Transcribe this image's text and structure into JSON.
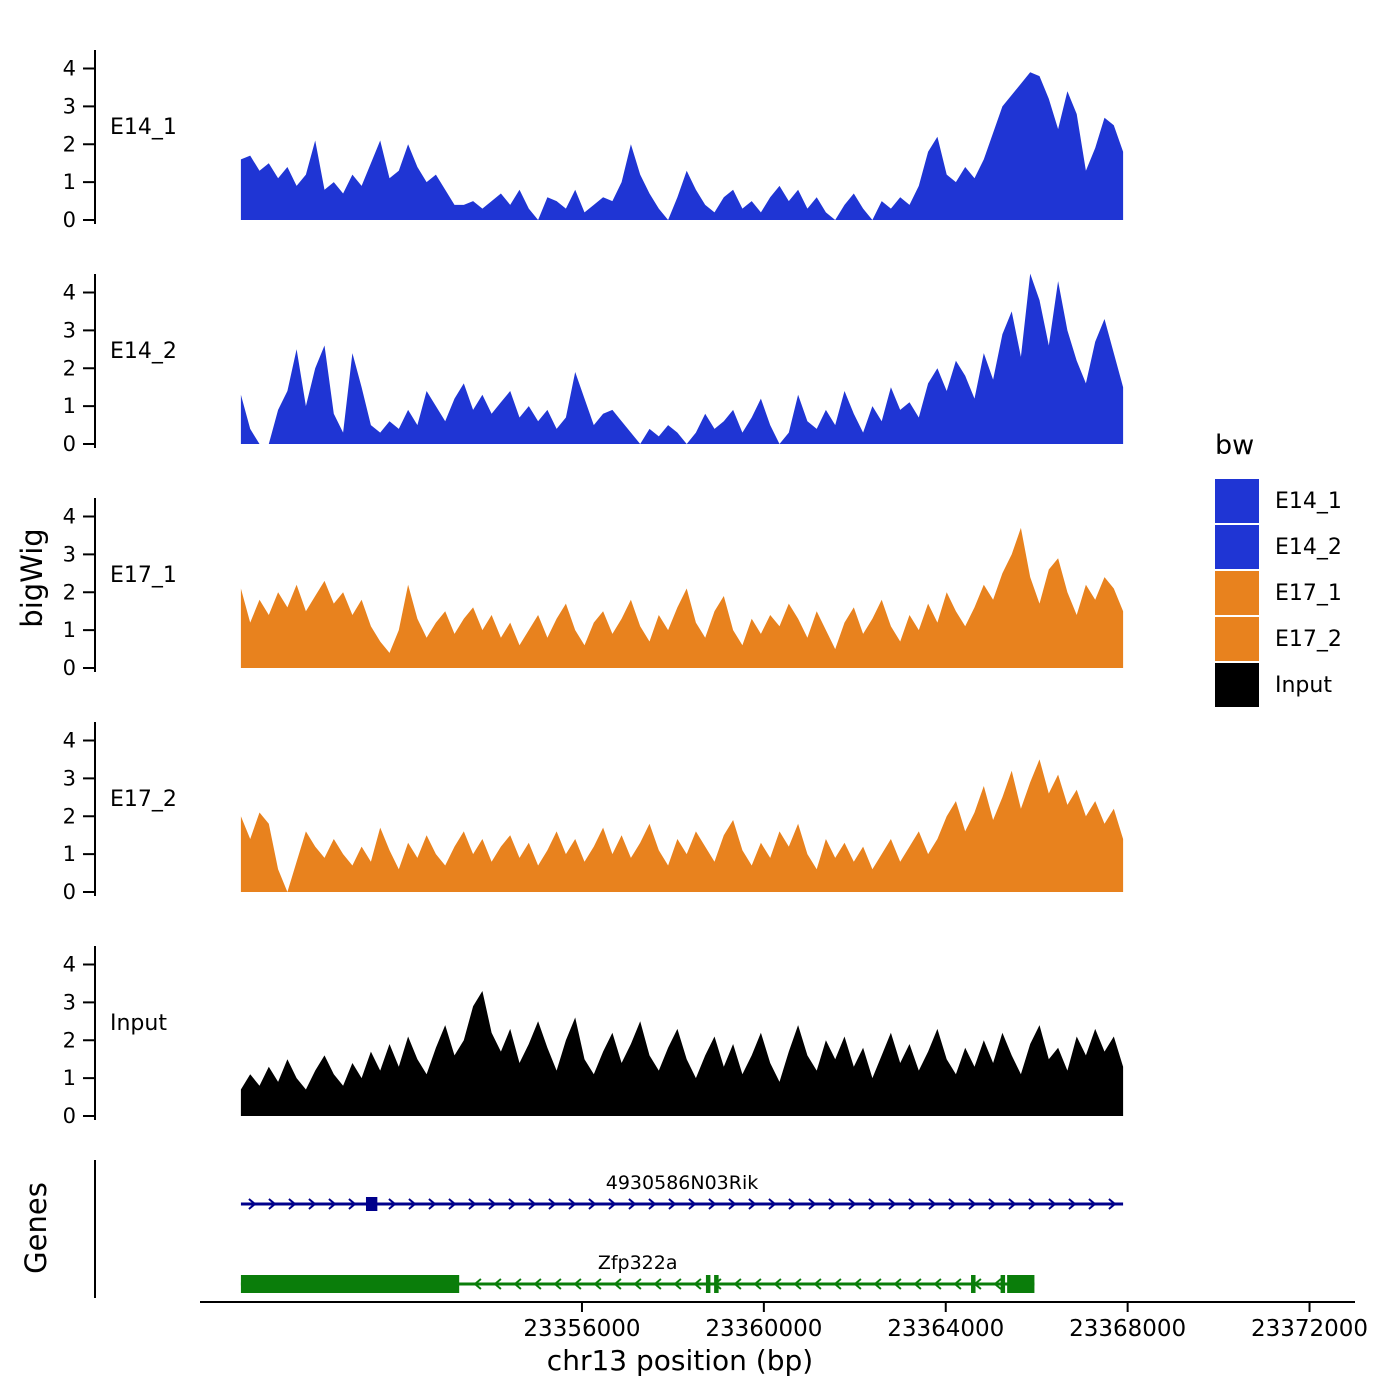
{
  "figure": {
    "y_axis_label": "bigWig",
    "genes_axis_label": "Genes",
    "x_axis_label": "chr13 position (bp)",
    "legend": {
      "title": "bw",
      "entries": [
        {
          "label": "E14_1",
          "color": "#1f35d4"
        },
        {
          "label": "E14_2",
          "color": "#1f35d4"
        },
        {
          "label": "E17_1",
          "color": "#e8821e"
        },
        {
          "label": "E17_2",
          "color": "#e8821e"
        },
        {
          "label": "Input",
          "color": "#000000"
        }
      ]
    }
  },
  "chart_data": {
    "type": "area",
    "title": "",
    "xlabel": "chr13 position (bp)",
    "ylabel": "bigWig",
    "x_domain": [
      23347600,
      23373000
    ],
    "x_ticks": [
      23356000,
      23360000,
      23364000,
      23368000,
      23372000
    ],
    "x_tick_labels": [
      "23356000",
      "23360000",
      "23364000",
      "23368000",
      "23372000"
    ],
    "y_ticks": [
      0,
      1,
      2,
      3,
      4
    ],
    "ylim": [
      0,
      4.7
    ],
    "x_start": 23348500,
    "x_end": 23367900,
    "tracks": [
      {
        "name": "E14_1",
        "color": "#1f35d4",
        "values": [
          1.6,
          1.7,
          1.3,
          1.5,
          1.1,
          1.4,
          0.9,
          1.2,
          2.1,
          0.8,
          1.0,
          0.7,
          1.2,
          0.9,
          1.5,
          2.1,
          1.1,
          1.3,
          2.0,
          1.4,
          1.0,
          1.2,
          0.8,
          0.4,
          0.4,
          0.5,
          0.3,
          0.5,
          0.7,
          0.4,
          0.8,
          0.3,
          0.0,
          0.6,
          0.5,
          0.3,
          0.8,
          0.2,
          0.4,
          0.6,
          0.5,
          1.0,
          2.0,
          1.2,
          0.7,
          0.3,
          0.0,
          0.6,
          1.3,
          0.8,
          0.4,
          0.2,
          0.6,
          0.8,
          0.3,
          0.5,
          0.2,
          0.6,
          0.9,
          0.5,
          0.8,
          0.3,
          0.6,
          0.2,
          0.0,
          0.4,
          0.7,
          0.3,
          0.0,
          0.5,
          0.3,
          0.6,
          0.4,
          0.9,
          1.8,
          2.2,
          1.2,
          1.0,
          1.4,
          1.1,
          1.6,
          2.3,
          3.0,
          3.3,
          3.6,
          3.9,
          3.8,
          3.2,
          2.4,
          3.4,
          2.8,
          1.3,
          1.9,
          2.7,
          2.5,
          1.8
        ]
      },
      {
        "name": "E14_2",
        "color": "#1f35d4",
        "values": [
          1.3,
          0.4,
          0.0,
          0.0,
          0.9,
          1.4,
          2.5,
          1.0,
          2.0,
          2.6,
          0.8,
          0.3,
          2.4,
          1.5,
          0.5,
          0.3,
          0.6,
          0.4,
          0.9,
          0.5,
          1.4,
          1.0,
          0.6,
          1.2,
          1.6,
          0.9,
          1.3,
          0.8,
          1.1,
          1.4,
          0.7,
          1.0,
          0.6,
          0.9,
          0.4,
          0.7,
          1.9,
          1.2,
          0.5,
          0.8,
          0.9,
          0.6,
          0.3,
          0.0,
          0.4,
          0.2,
          0.5,
          0.3,
          0.0,
          0.3,
          0.8,
          0.4,
          0.6,
          0.9,
          0.3,
          0.7,
          1.2,
          0.5,
          0.0,
          0.3,
          1.3,
          0.6,
          0.4,
          0.9,
          0.5,
          1.4,
          0.8,
          0.3,
          1.0,
          0.6,
          1.5,
          0.9,
          1.1,
          0.7,
          1.6,
          2.0,
          1.4,
          2.2,
          1.8,
          1.2,
          2.4,
          1.7,
          2.9,
          3.5,
          2.3,
          4.5,
          3.8,
          2.6,
          4.3,
          3.0,
          2.2,
          1.6,
          2.7,
          3.3,
          2.4,
          1.5
        ]
      },
      {
        "name": "E17_1",
        "color": "#e8821e",
        "values": [
          2.1,
          1.2,
          1.8,
          1.4,
          2.0,
          1.6,
          2.2,
          1.5,
          1.9,
          2.3,
          1.7,
          2.0,
          1.4,
          1.8,
          1.1,
          0.7,
          0.4,
          1.0,
          2.2,
          1.3,
          0.8,
          1.2,
          1.5,
          0.9,
          1.3,
          1.6,
          1.0,
          1.4,
          0.8,
          1.2,
          0.6,
          1.0,
          1.4,
          0.8,
          1.3,
          1.7,
          1.0,
          0.6,
          1.2,
          1.5,
          0.9,
          1.3,
          1.8,
          1.1,
          0.7,
          1.4,
          1.0,
          1.6,
          2.1,
          1.2,
          0.8,
          1.5,
          1.9,
          1.0,
          0.6,
          1.3,
          0.9,
          1.4,
          1.1,
          1.7,
          1.3,
          0.8,
          1.5,
          1.0,
          0.5,
          1.2,
          1.6,
          0.9,
          1.3,
          1.8,
          1.1,
          0.7,
          1.4,
          1.0,
          1.7,
          1.2,
          2.0,
          1.5,
          1.1,
          1.6,
          2.2,
          1.8,
          2.5,
          3.0,
          3.7,
          2.4,
          1.7,
          2.6,
          2.9,
          2.0,
          1.4,
          2.2,
          1.8,
          2.4,
          2.1,
          1.5
        ]
      },
      {
        "name": "E17_2",
        "color": "#e8821e",
        "values": [
          2.0,
          1.4,
          2.1,
          1.8,
          0.6,
          0.0,
          0.8,
          1.6,
          1.2,
          0.9,
          1.4,
          1.0,
          0.7,
          1.2,
          0.8,
          1.7,
          1.1,
          0.6,
          1.3,
          0.9,
          1.5,
          1.0,
          0.7,
          1.2,
          1.6,
          1.0,
          1.4,
          0.8,
          1.2,
          1.5,
          0.9,
          1.3,
          0.7,
          1.1,
          1.6,
          1.0,
          1.4,
          0.8,
          1.2,
          1.7,
          1.0,
          1.5,
          0.9,
          1.3,
          1.8,
          1.1,
          0.7,
          1.4,
          1.0,
          1.6,
          1.2,
          0.8,
          1.5,
          1.9,
          1.1,
          0.7,
          1.3,
          0.9,
          1.6,
          1.2,
          1.8,
          1.0,
          0.6,
          1.4,
          0.9,
          1.3,
          0.8,
          1.2,
          0.6,
          1.0,
          1.4,
          0.8,
          1.2,
          1.6,
          1.0,
          1.4,
          2.0,
          2.4,
          1.6,
          2.1,
          2.8,
          1.9,
          2.5,
          3.2,
          2.2,
          2.9,
          3.5,
          2.6,
          3.1,
          2.3,
          2.7,
          2.0,
          2.4,
          1.8,
          2.2,
          1.4
        ]
      },
      {
        "name": "Input",
        "color": "#000000",
        "values": [
          0.7,
          1.1,
          0.8,
          1.3,
          0.9,
          1.5,
          1.0,
          0.7,
          1.2,
          1.6,
          1.1,
          0.8,
          1.4,
          1.0,
          1.7,
          1.2,
          1.9,
          1.3,
          2.1,
          1.5,
          1.1,
          1.8,
          2.4,
          1.6,
          2.0,
          2.9,
          3.3,
          2.2,
          1.7,
          2.3,
          1.4,
          1.9,
          2.5,
          1.8,
          1.2,
          2.0,
          2.6,
          1.5,
          1.1,
          1.7,
          2.2,
          1.4,
          1.9,
          2.5,
          1.6,
          1.2,
          1.8,
          2.3,
          1.5,
          1.0,
          1.6,
          2.1,
          1.3,
          1.9,
          1.1,
          1.6,
          2.2,
          1.4,
          0.9,
          1.7,
          2.4,
          1.6,
          1.2,
          2.0,
          1.5,
          2.1,
          1.3,
          1.8,
          1.0,
          1.6,
          2.2,
          1.4,
          1.9,
          1.2,
          1.7,
          2.3,
          1.5,
          1.1,
          1.8,
          1.3,
          2.0,
          1.4,
          2.2,
          1.6,
          1.1,
          1.9,
          2.4,
          1.5,
          1.8,
          1.2,
          2.1,
          1.6,
          2.3,
          1.7,
          2.1,
          1.3
        ]
      }
    ],
    "genes": [
      {
        "name": "4930586N03Rik",
        "color": "#00008b",
        "strand": "+",
        "start": 23348500,
        "end": 23367900,
        "exons": [
          [
            23351250,
            23351500
          ]
        ]
      },
      {
        "name": "Zfp322a",
        "color": "#0a7d0a",
        "strand": "-",
        "start": 23348500,
        "end": 23365950,
        "boxes": [
          [
            23348500,
            23353300
          ],
          [
            23365350,
            23365950
          ]
        ],
        "exon_ticks": [
          23358770,
          23358950,
          23364600,
          23365250
        ]
      }
    ]
  }
}
